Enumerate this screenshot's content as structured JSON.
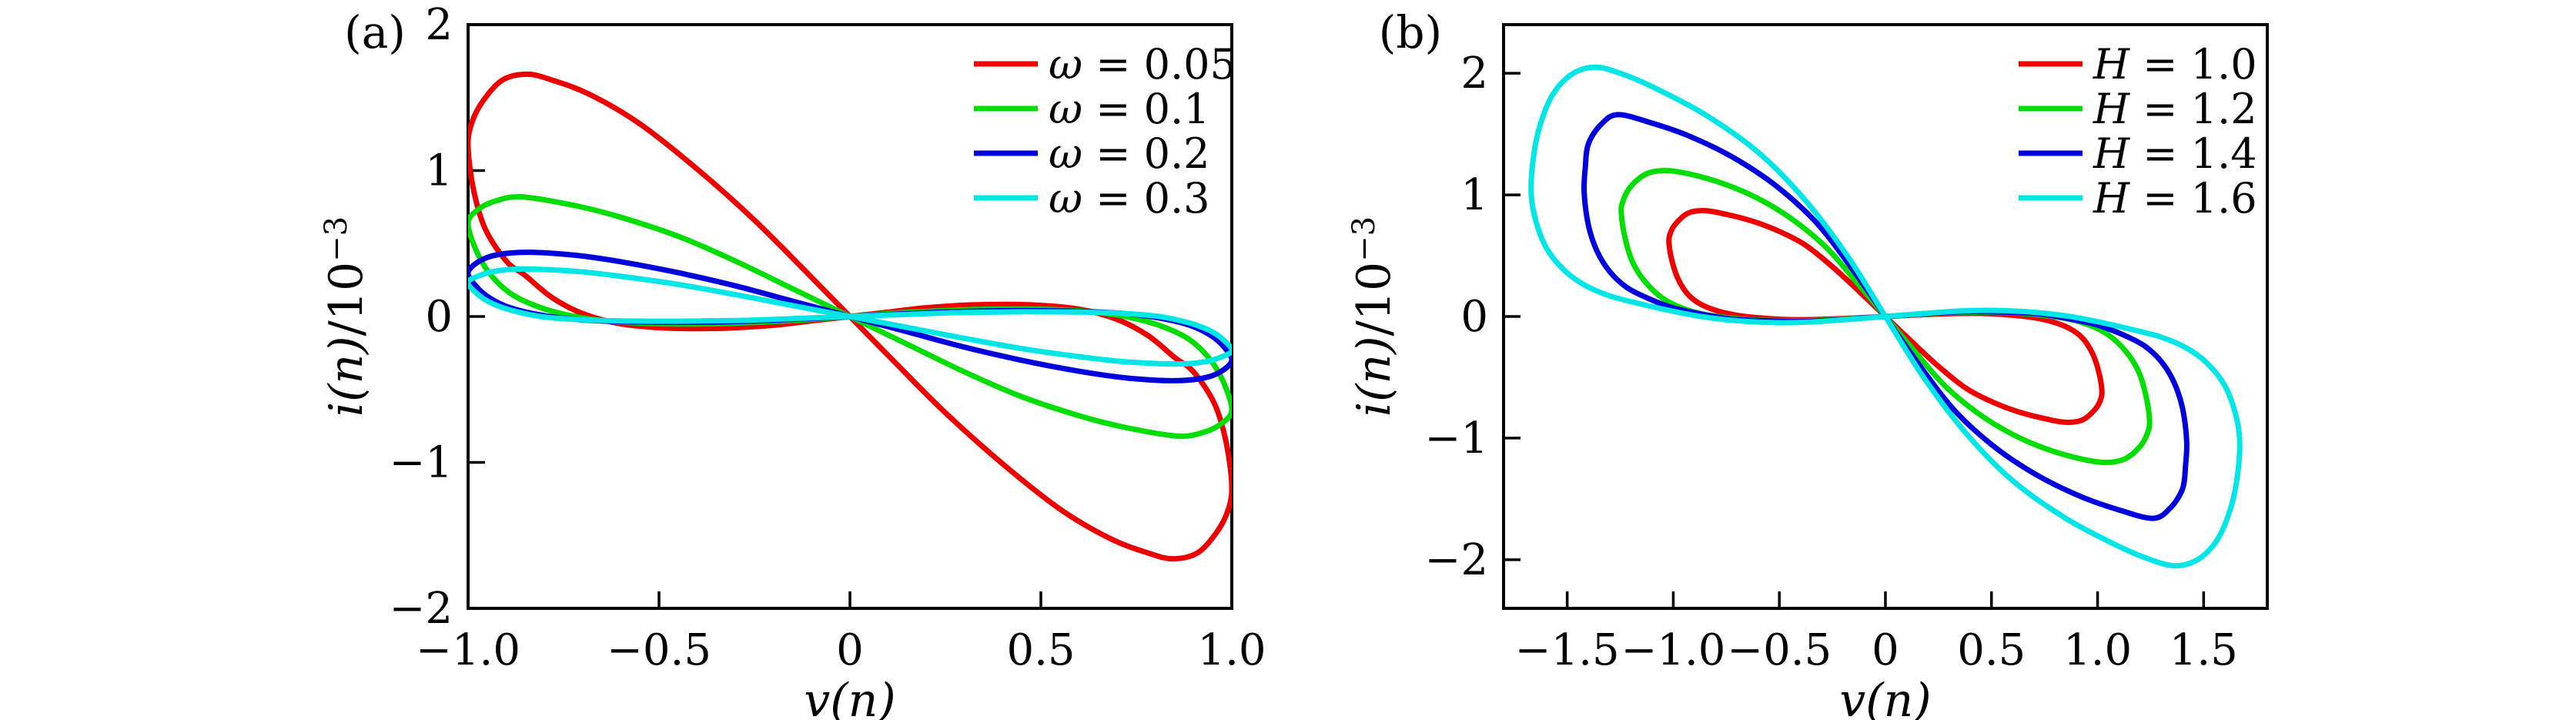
{
  "figure": {
    "background": "#ffffff",
    "axis_color": "#000000",
    "line_width": 7
  },
  "chart_data": [
    {
      "type": "line",
      "panel_label": "(a)",
      "xlabel": "v(n)",
      "ylabel": "i(n)/10⁻³",
      "ylabel_main": "i(n)",
      "ylabel_div": "/10",
      "ylabel_sup": "−3",
      "x_range": [
        -1.0,
        1.0
      ],
      "y_range": [
        -2,
        2
      ],
      "grid": false,
      "legend_position": "upper right",
      "x_ticks": [
        {
          "v": -1.0,
          "label": "−1.0"
        },
        {
          "v": -0.5,
          "label": "−0.5"
        },
        {
          "v": 0.0,
          "label": "0"
        },
        {
          "v": 0.5,
          "label": "0.5"
        },
        {
          "v": 1.0,
          "label": "1.0"
        }
      ],
      "y_ticks": [
        {
          "v": -2,
          "label": "−2"
        },
        {
          "v": -1,
          "label": "−1"
        },
        {
          "v": 0,
          "label": "0"
        },
        {
          "v": 1,
          "label": "1"
        },
        {
          "v": 2,
          "label": "2"
        }
      ],
      "series": [
        {
          "name": "omega-0.05",
          "label": "ω = 0.05",
          "label_sym": "ω",
          "label_rest": " = 0.05",
          "color": "#ee0000",
          "amplitude": 1.0,
          "fold_current": 1.16,
          "peak": {
            "v": -0.845,
            "i": 1.66
          },
          "loop_points_left_lobe": [
            [
              0,
              0
            ],
            [
              -0.12,
              0.32
            ],
            [
              -0.25,
              0.66
            ],
            [
              -0.4,
              1.01
            ],
            [
              -0.55,
              1.32
            ],
            [
              -0.68,
              1.52
            ],
            [
              -0.78,
              1.62
            ],
            [
              -0.845,
              1.66
            ],
            [
              -0.91,
              1.62
            ],
            [
              -0.96,
              1.48
            ],
            [
              -0.99,
              1.33
            ],
            [
              -1.0,
              1.16
            ],
            [
              -0.985,
              0.86
            ],
            [
              -0.955,
              0.6
            ],
            [
              -0.9,
              0.38
            ],
            [
              -0.85,
              0.28
            ],
            [
              -0.78,
              0.13
            ],
            [
              -0.7,
              0.02
            ],
            [
              -0.6,
              -0.05
            ],
            [
              -0.47,
              -0.08
            ],
            [
              -0.33,
              -0.08
            ],
            [
              -0.2,
              -0.06
            ],
            [
              -0.1,
              -0.03
            ],
            [
              0,
              0
            ]
          ]
        },
        {
          "name": "omega-0.1",
          "label": "ω = 0.1",
          "label_sym": "ω",
          "label_rest": " = 0.1",
          "color": "#00dd00",
          "amplitude": 1.0,
          "fold_current": 0.64,
          "peak": {
            "v": -0.86,
            "i": 0.82
          },
          "loop_points_left_lobe": [
            [
              0,
              0
            ],
            [
              -0.15,
              0.19
            ],
            [
              -0.3,
              0.38
            ],
            [
              -0.45,
              0.55
            ],
            [
              -0.6,
              0.68
            ],
            [
              -0.72,
              0.76
            ],
            [
              -0.86,
              0.82
            ],
            [
              -0.93,
              0.79
            ],
            [
              -0.975,
              0.73
            ],
            [
              -1.0,
              0.64
            ],
            [
              -0.98,
              0.46
            ],
            [
              -0.945,
              0.3
            ],
            [
              -0.89,
              0.16
            ],
            [
              -0.82,
              0.07
            ],
            [
              -0.74,
              0.01
            ],
            [
              -0.64,
              -0.03
            ],
            [
              -0.5,
              -0.05
            ],
            [
              -0.35,
              -0.05
            ],
            [
              -0.2,
              -0.035
            ],
            [
              -0.1,
              -0.02
            ],
            [
              0,
              0
            ]
          ]
        },
        {
          "name": "omega-0.2",
          "label": "ω = 0.2",
          "label_sym": "ω",
          "label_rest": " = 0.2",
          "color": "#0000dd",
          "amplitude": 1.0,
          "fold_current": 0.3,
          "peak": {
            "v": -0.84,
            "i": 0.44
          },
          "loop_points_left_lobe": [
            [
              0,
              0
            ],
            [
              -0.15,
              0.105
            ],
            [
              -0.3,
              0.21
            ],
            [
              -0.45,
              0.3
            ],
            [
              -0.6,
              0.375
            ],
            [
              -0.72,
              0.42
            ],
            [
              -0.84,
              0.44
            ],
            [
              -0.92,
              0.425
            ],
            [
              -0.97,
              0.38
            ],
            [
              -1.0,
              0.3
            ],
            [
              -0.98,
              0.21
            ],
            [
              -0.945,
              0.13
            ],
            [
              -0.89,
              0.06
            ],
            [
              -0.81,
              0.01
            ],
            [
              -0.72,
              -0.02
            ],
            [
              -0.6,
              -0.035
            ],
            [
              -0.45,
              -0.04
            ],
            [
              -0.3,
              -0.035
            ],
            [
              -0.15,
              -0.02
            ],
            [
              0,
              0
            ]
          ]
        },
        {
          "name": "omega-0.3",
          "label": "ω = 0.3",
          "label_sym": "ω",
          "label_rest": " = 0.3",
          "color": "#00e6e6",
          "amplitude": 1.0,
          "fold_current": 0.235,
          "peak": {
            "v": -0.86,
            "i": 0.325
          },
          "loop_points_left_lobe": [
            [
              0,
              0
            ],
            [
              -0.15,
              0.075
            ],
            [
              -0.3,
              0.15
            ],
            [
              -0.45,
              0.22
            ],
            [
              -0.6,
              0.275
            ],
            [
              -0.72,
              0.31
            ],
            [
              -0.86,
              0.325
            ],
            [
              -0.93,
              0.31
            ],
            [
              -0.97,
              0.28
            ],
            [
              -1.0,
              0.235
            ],
            [
              -0.98,
              0.165
            ],
            [
              -0.945,
              0.1
            ],
            [
              -0.89,
              0.045
            ],
            [
              -0.81,
              0.0
            ],
            [
              -0.72,
              -0.02
            ],
            [
              -0.6,
              -0.03
            ],
            [
              -0.45,
              -0.032
            ],
            [
              -0.3,
              -0.028
            ],
            [
              -0.15,
              -0.015
            ],
            [
              0,
              0
            ]
          ]
        }
      ]
    },
    {
      "type": "line",
      "panel_label": "(b)",
      "xlabel": "v(n)",
      "ylabel": "i(n)/10⁻³",
      "ylabel_main": "i(n)",
      "ylabel_div": "/10",
      "ylabel_sup": "−3",
      "x_range": [
        -1.8,
        1.8
      ],
      "y_range": [
        -2.4,
        2.4
      ],
      "grid": false,
      "legend_position": "upper right",
      "x_ticks": [
        {
          "v": -1.5,
          "label": "−1.5"
        },
        {
          "v": -1.0,
          "label": "−1.0"
        },
        {
          "v": -0.5,
          "label": "−0.5"
        },
        {
          "v": 0.0,
          "label": "0"
        },
        {
          "v": 0.5,
          "label": "0.5"
        },
        {
          "v": 1.0,
          "label": "1.0"
        },
        {
          "v": 1.5,
          "label": "1.5"
        }
      ],
      "y_ticks": [
        {
          "v": -2,
          "label": "−2"
        },
        {
          "v": -1,
          "label": "−1"
        },
        {
          "v": 0,
          "label": "0"
        },
        {
          "v": 1,
          "label": "1"
        },
        {
          "v": 2,
          "label": "2"
        }
      ],
      "series": [
        {
          "name": "H-1.0",
          "label": "H = 1.0",
          "label_sym": "H",
          "label_rest": " = 1.0",
          "color": "#ee0000",
          "amplitude": 1.02,
          "fold_current": 0.6,
          "peak": {
            "v": -0.85,
            "i": 0.87
          },
          "loop_points_left_lobe": [
            [
              0,
              0
            ],
            [
              -0.12,
              0.2
            ],
            [
              -0.25,
              0.41
            ],
            [
              -0.38,
              0.59
            ],
            [
              -0.5,
              0.7
            ],
            [
              -0.62,
              0.78
            ],
            [
              -0.75,
              0.84
            ],
            [
              -0.85,
              0.87
            ],
            [
              -0.93,
              0.85
            ],
            [
              -0.99,
              0.76
            ],
            [
              -1.015,
              0.68
            ],
            [
              -1.02,
              0.6
            ],
            [
              -1.005,
              0.45
            ],
            [
              -0.975,
              0.3
            ],
            [
              -0.93,
              0.18
            ],
            [
              -0.87,
              0.1
            ],
            [
              -0.79,
              0.045
            ],
            [
              -0.7,
              0.01
            ],
            [
              -0.6,
              -0.01
            ],
            [
              -0.47,
              -0.025
            ],
            [
              -0.33,
              -0.025
            ],
            [
              -0.18,
              -0.015
            ],
            [
              0,
              0
            ]
          ]
        },
        {
          "name": "H-1.2",
          "label": "H = 1.2",
          "label_sym": "H",
          "label_rest": " = 1.2",
          "color": "#00dd00",
          "amplitude": 1.245,
          "fold_current": 0.85,
          "peak": {
            "v": -1.04,
            "i": 1.2
          },
          "loop_points_left_lobe": [
            [
              0,
              0
            ],
            [
              -0.14,
              0.29
            ],
            [
              -0.28,
              0.57
            ],
            [
              -0.44,
              0.8
            ],
            [
              -0.6,
              0.97
            ],
            [
              -0.76,
              1.09
            ],
            [
              -0.92,
              1.17
            ],
            [
              -1.04,
              1.2
            ],
            [
              -1.13,
              1.17
            ],
            [
              -1.2,
              1.07
            ],
            [
              -1.235,
              0.96
            ],
            [
              -1.245,
              0.85
            ],
            [
              -1.225,
              0.63
            ],
            [
              -1.19,
              0.44
            ],
            [
              -1.13,
              0.28
            ],
            [
              -1.05,
              0.15
            ],
            [
              -0.96,
              0.07
            ],
            [
              -0.86,
              0.02
            ],
            [
              -0.74,
              -0.01
            ],
            [
              -0.6,
              -0.03
            ],
            [
              -0.44,
              -0.035
            ],
            [
              -0.28,
              -0.03
            ],
            [
              -0.14,
              -0.015
            ],
            [
              0,
              0
            ]
          ]
        },
        {
          "name": "H-1.4",
          "label": "H = 1.4",
          "label_sym": "H",
          "label_rest": " = 1.4",
          "color": "#0000dd",
          "amplitude": 1.42,
          "fold_current": 1.02,
          "peak": {
            "v": -1.26,
            "i": 1.66
          },
          "loop_points_left_lobe": [
            [
              0,
              0
            ],
            [
              -0.16,
              0.4
            ],
            [
              -0.33,
              0.78
            ],
            [
              -0.52,
              1.08
            ],
            [
              -0.72,
              1.31
            ],
            [
              -0.92,
              1.48
            ],
            [
              -1.1,
              1.59
            ],
            [
              -1.26,
              1.66
            ],
            [
              -1.34,
              1.58
            ],
            [
              -1.4,
              1.42
            ],
            [
              -1.415,
              1.22
            ],
            [
              -1.42,
              1.02
            ],
            [
              -1.4,
              0.75
            ],
            [
              -1.36,
              0.54
            ],
            [
              -1.3,
              0.37
            ],
            [
              -1.22,
              0.24
            ],
            [
              -1.12,
              0.15
            ],
            [
              -1.0,
              0.07
            ],
            [
              -0.87,
              0.02
            ],
            [
              -0.73,
              -0.02
            ],
            [
              -0.57,
              -0.035
            ],
            [
              -0.4,
              -0.04
            ],
            [
              -0.24,
              -0.03
            ],
            [
              -0.12,
              -0.015
            ],
            [
              0,
              0
            ]
          ]
        },
        {
          "name": "H-1.6",
          "label": "H = 1.6",
          "label_sym": "H",
          "label_rest": " = 1.6",
          "color": "#00e6e6",
          "amplitude": 1.67,
          "fold_current": 1.02,
          "peak": {
            "v": -1.37,
            "i": 2.05
          },
          "loop_points_left_lobe": [
            [
              0,
              0
            ],
            [
              -0.18,
              0.5
            ],
            [
              -0.38,
              0.96
            ],
            [
              -0.6,
              1.35
            ],
            [
              -0.85,
              1.66
            ],
            [
              -1.1,
              1.89
            ],
            [
              -1.25,
              2.0
            ],
            [
              -1.37,
              2.05
            ],
            [
              -1.48,
              1.99
            ],
            [
              -1.57,
              1.82
            ],
            [
              -1.63,
              1.56
            ],
            [
              -1.66,
              1.3
            ],
            [
              -1.67,
              1.02
            ],
            [
              -1.65,
              0.8
            ],
            [
              -1.6,
              0.57
            ],
            [
              -1.52,
              0.39
            ],
            [
              -1.42,
              0.26
            ],
            [
              -1.3,
              0.17
            ],
            [
              -1.17,
              0.11
            ],
            [
              -1.02,
              0.05
            ],
            [
              -0.87,
              0.0
            ],
            [
              -0.7,
              -0.035
            ],
            [
              -0.52,
              -0.05
            ],
            [
              -0.35,
              -0.045
            ],
            [
              -0.18,
              -0.025
            ],
            [
              0,
              0
            ]
          ]
        }
      ]
    }
  ]
}
